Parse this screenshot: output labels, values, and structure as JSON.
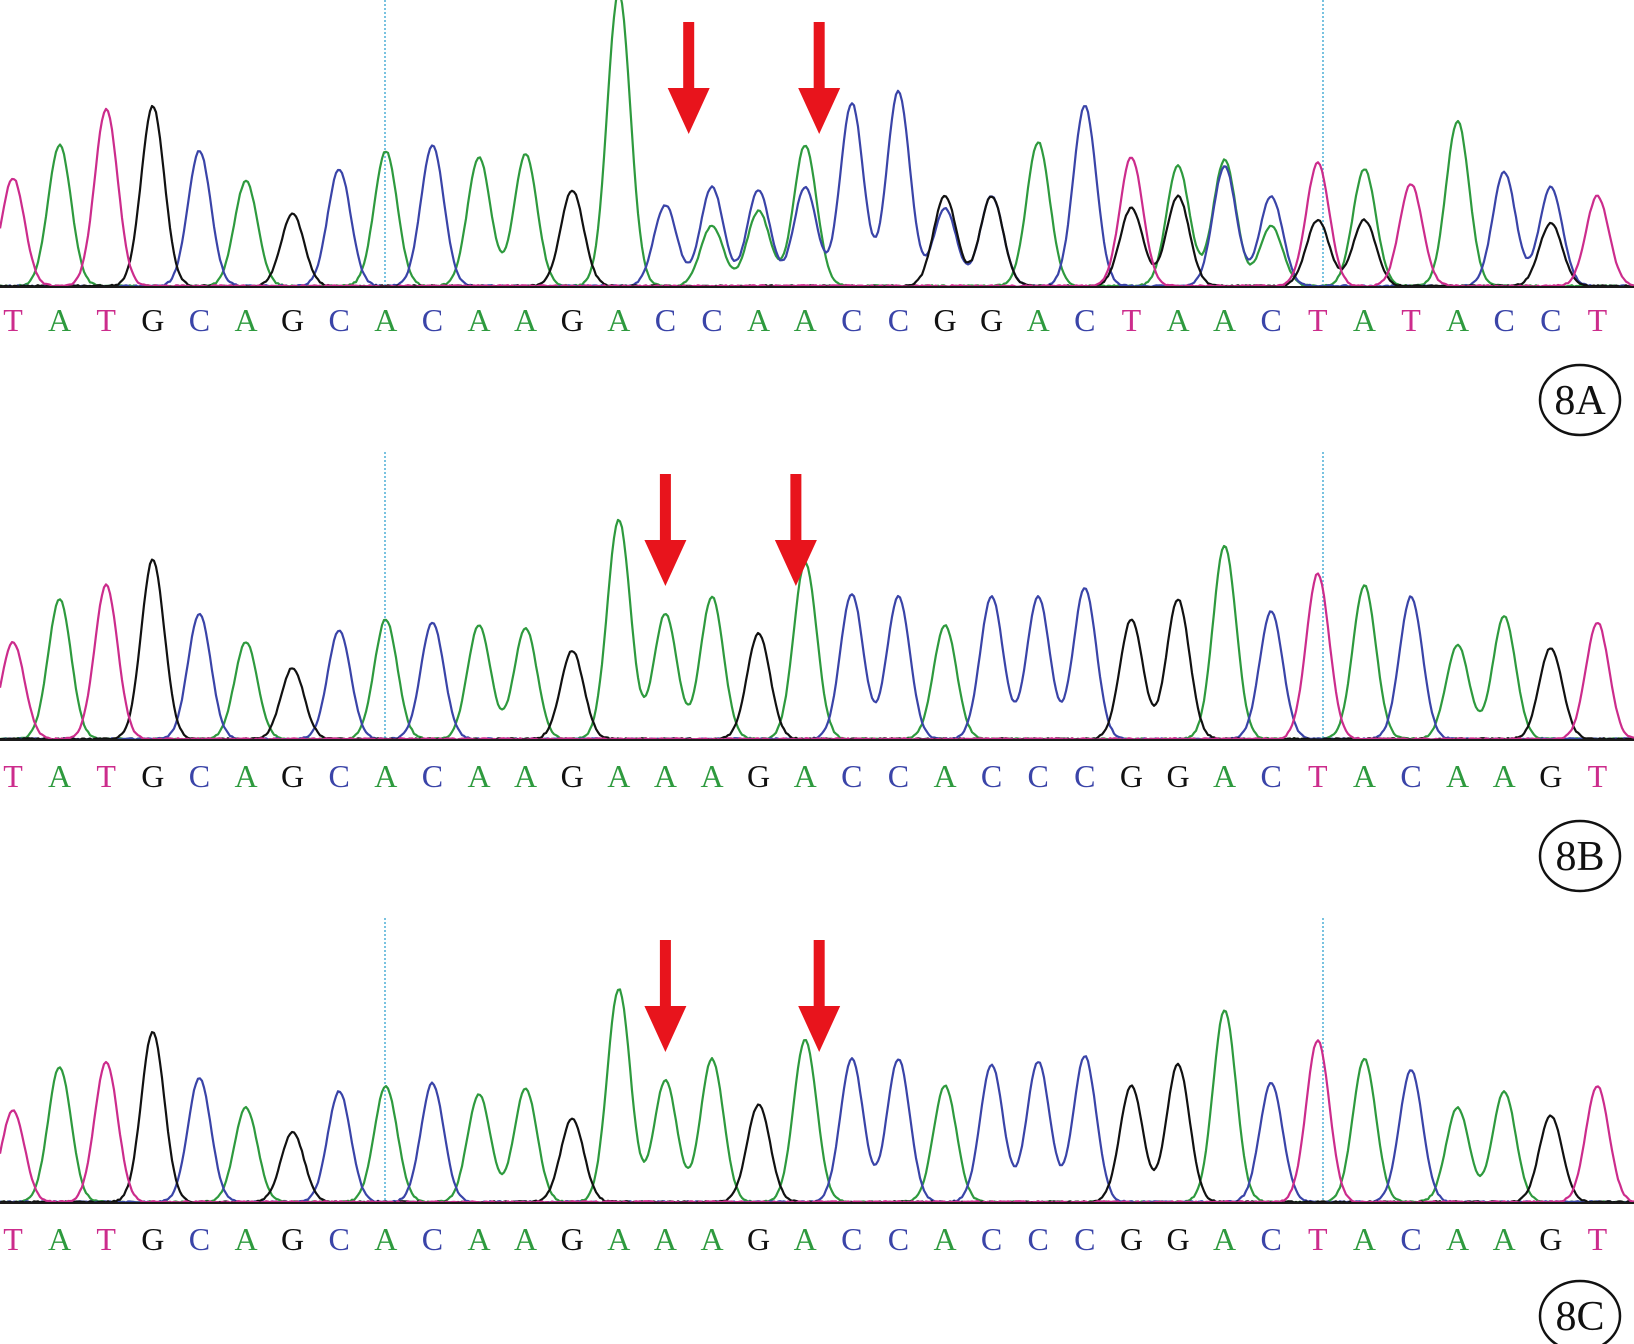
{
  "colors": {
    "A": "#2e9a3e",
    "C": "#3a44a8",
    "G": "#111111",
    "T": "#cc2c8c",
    "arrow": "#e8141c",
    "divider": "#58b4d8",
    "baseline": "#1a1a1a"
  },
  "chart_data": [
    {
      "type": "line",
      "panel_label": "8A",
      "bases": [
        "T",
        "A",
        "T",
        "G",
        "C",
        "A",
        "G",
        "C",
        "A",
        "C",
        "A",
        "A",
        "G",
        "A",
        "C",
        "C",
        "A",
        "A",
        "C",
        "C",
        "G",
        "G",
        "A",
        "C",
        "T",
        "A",
        "A",
        "C",
        "T",
        "A",
        "T",
        "A",
        "C",
        "C",
        "T"
      ],
      "peak_heights": [
        0.36,
        0.47,
        0.59,
        0.6,
        0.45,
        0.35,
        0.24,
        0.39,
        0.45,
        0.47,
        0.43,
        0.44,
        0.32,
        0.98,
        0.27,
        0.33,
        0.25,
        0.47,
        0.61,
        0.65,
        0.3,
        0.3,
        0.48,
        0.6,
        0.43,
        0.4,
        0.42,
        0.3,
        0.41,
        0.39,
        0.34,
        0.55,
        0.38,
        0.33,
        0.3
      ],
      "secondary_peaks": [
        {
          "index": 15,
          "base": "A",
          "height": 0.2
        },
        {
          "index": 16,
          "base": "C",
          "height": 0.32
        },
        {
          "index": 17,
          "base": "C",
          "height": 0.33
        },
        {
          "index": 20,
          "base": "C",
          "height": 0.26
        },
        {
          "index": 21,
          "base": "C",
          "height": 0.3
        },
        {
          "index": 24,
          "base": "G",
          "height": 0.26
        },
        {
          "index": 25,
          "base": "G",
          "height": 0.3
        },
        {
          "index": 26,
          "base": "C",
          "height": 0.4
        },
        {
          "index": 27,
          "base": "A",
          "height": 0.2
        },
        {
          "index": 28,
          "base": "G",
          "height": 0.22
        },
        {
          "index": 29,
          "base": "G",
          "height": 0.22
        },
        {
          "index": 33,
          "base": "G",
          "height": 0.21
        }
      ],
      "arrow_positions": [
        14.5,
        17.3
      ]
    },
    {
      "type": "line",
      "panel_label": "8B",
      "bases": [
        "T",
        "A",
        "T",
        "G",
        "C",
        "A",
        "G",
        "C",
        "A",
        "C",
        "A",
        "A",
        "G",
        "A",
        "A",
        "A",
        "G",
        "A",
        "C",
        "C",
        "A",
        "C",
        "C",
        "C",
        "G",
        "G",
        "A",
        "C",
        "T",
        "A",
        "C",
        "A",
        "A",
        "G",
        "T"
      ],
      "peak_heights": [
        0.34,
        0.49,
        0.54,
        0.63,
        0.44,
        0.34,
        0.25,
        0.38,
        0.42,
        0.41,
        0.4,
        0.39,
        0.31,
        0.77,
        0.44,
        0.5,
        0.37,
        0.62,
        0.51,
        0.5,
        0.4,
        0.5,
        0.5,
        0.53,
        0.42,
        0.49,
        0.68,
        0.45,
        0.58,
        0.54,
        0.5,
        0.33,
        0.43,
        0.32,
        0.41
      ],
      "secondary_peaks": [],
      "arrow_positions": [
        14.0,
        16.8
      ]
    },
    {
      "type": "line",
      "panel_label": "8C",
      "bases": [
        "T",
        "A",
        "T",
        "G",
        "C",
        "A",
        "G",
        "C",
        "A",
        "C",
        "A",
        "A",
        "G",
        "A",
        "A",
        "A",
        "G",
        "A",
        "C",
        "C",
        "A",
        "C",
        "C",
        "C",
        "G",
        "G",
        "A",
        "C",
        "T",
        "A",
        "C",
        "A",
        "A",
        "G",
        "T"
      ],
      "peak_heights": [
        0.34,
        0.5,
        0.52,
        0.63,
        0.46,
        0.35,
        0.26,
        0.41,
        0.43,
        0.44,
        0.4,
        0.42,
        0.31,
        0.79,
        0.45,
        0.53,
        0.36,
        0.6,
        0.53,
        0.53,
        0.43,
        0.51,
        0.52,
        0.54,
        0.43,
        0.51,
        0.71,
        0.44,
        0.6,
        0.53,
        0.49,
        0.35,
        0.41,
        0.32,
        0.43
      ],
      "secondary_peaks": [],
      "arrow_positions": [
        14.0,
        17.3
      ]
    }
  ]
}
